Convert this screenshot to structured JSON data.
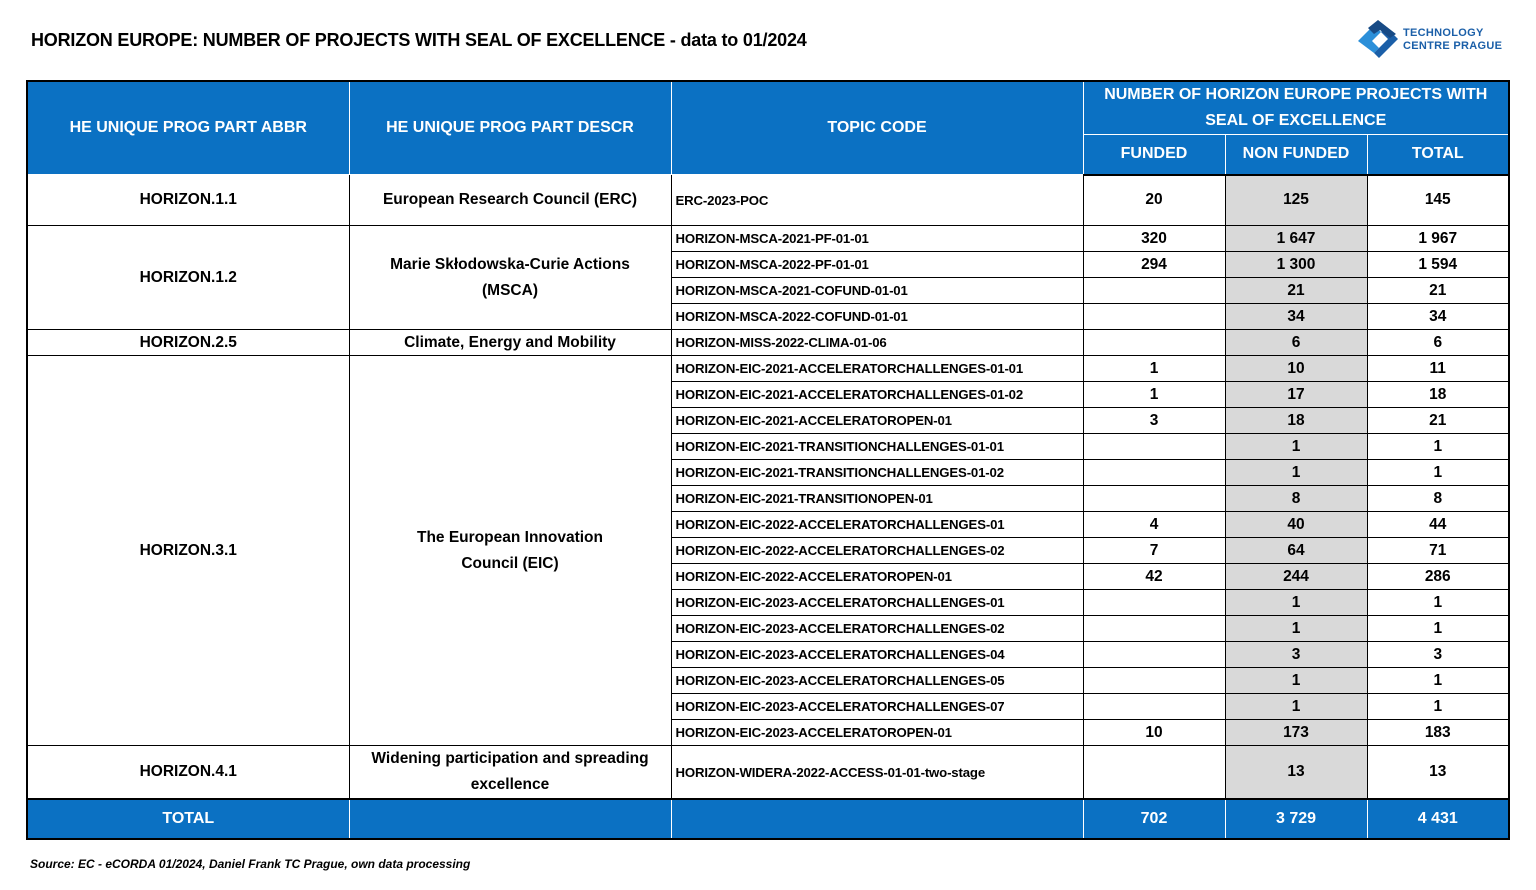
{
  "title": "HORIZON EUROPE: NUMBER OF PROJECTS WITH SEAL OF EXCELLENCE - data to 01/2024",
  "logo": {
    "line1": "TECHNOLOGY",
    "line2": "CENTRE PRAGUE",
    "colors": [
      "#1b5fa8",
      "#2b8fd9"
    ]
  },
  "header": {
    "abbr": "HE UNIQUE PROG PART ABBR",
    "descr": "HE UNIQUE PROG PART DESCR",
    "topic": "TOPIC CODE",
    "group": "NUMBER OF HORIZON EUROPE PROJECTS WITH SEAL OF EXCELLENCE",
    "funded": "FUNDED",
    "non_funded": "NON FUNDED",
    "total": "TOTAL"
  },
  "groups": [
    {
      "abbr": "HORIZON.1.1",
      "descr": "European Research Council (ERC)",
      "tall": true,
      "rows": [
        {
          "topic": "ERC-2023-POC",
          "funded": "20",
          "non_funded": "125",
          "total": "145"
        }
      ]
    },
    {
      "abbr": "HORIZON.1.2",
      "descr": "Marie Skłodowska-Curie Actions (MSCA)",
      "rows": [
        {
          "topic": "HORIZON-MSCA-2021-PF-01-01",
          "funded": "320",
          "non_funded": "1 647",
          "total": "1 967"
        },
        {
          "topic": "HORIZON-MSCA-2022-PF-01-01",
          "funded": "294",
          "non_funded": "1 300",
          "total": "1 594"
        },
        {
          "topic": "HORIZON-MSCA-2021-COFUND-01-01",
          "funded": "",
          "non_funded": "21",
          "total": "21"
        },
        {
          "topic": "HORIZON-MSCA-2022-COFUND-01-01",
          "funded": "",
          "non_funded": "34",
          "total": "34"
        }
      ]
    },
    {
      "abbr": "HORIZON.2.5",
      "descr": "Climate, Energy and Mobility",
      "rows": [
        {
          "topic": "HORIZON-MISS-2022-CLIMA-01-06",
          "funded": "",
          "non_funded": "6",
          "total": "6"
        }
      ]
    },
    {
      "abbr": "HORIZON.3.1",
      "descr": "The European Innovation Council (EIC)",
      "rows": [
        {
          "topic": "HORIZON-EIC-2021-ACCELERATORCHALLENGES-01-01",
          "funded": "1",
          "non_funded": "10",
          "total": "11"
        },
        {
          "topic": "HORIZON-EIC-2021-ACCELERATORCHALLENGES-01-02",
          "funded": "1",
          "non_funded": "17",
          "total": "18"
        },
        {
          "topic": "HORIZON-EIC-2021-ACCELERATOROPEN-01",
          "funded": "3",
          "non_funded": "18",
          "total": "21"
        },
        {
          "topic": "HORIZON-EIC-2021-TRANSITIONCHALLENGES-01-01",
          "funded": "",
          "non_funded": "1",
          "total": "1"
        },
        {
          "topic": "HORIZON-EIC-2021-TRANSITIONCHALLENGES-01-02",
          "funded": "",
          "non_funded": "1",
          "total": "1"
        },
        {
          "topic": "HORIZON-EIC-2021-TRANSITIONOPEN-01",
          "funded": "",
          "non_funded": "8",
          "total": "8"
        },
        {
          "topic": "HORIZON-EIC-2022-ACCELERATORCHALLENGES-01",
          "funded": "4",
          "non_funded": "40",
          "total": "44"
        },
        {
          "topic": "HORIZON-EIC-2022-ACCELERATORCHALLENGES-02",
          "funded": "7",
          "non_funded": "64",
          "total": "71"
        },
        {
          "topic": "HORIZON-EIC-2022-ACCELERATOROPEN-01",
          "funded": "42",
          "non_funded": "244",
          "total": "286"
        },
        {
          "topic": "HORIZON-EIC-2023-ACCELERATORCHALLENGES-01",
          "funded": "",
          "non_funded": "1",
          "total": "1"
        },
        {
          "topic": "HORIZON-EIC-2023-ACCELERATORCHALLENGES-02",
          "funded": "",
          "non_funded": "1",
          "total": "1"
        },
        {
          "topic": "HORIZON-EIC-2023-ACCELERATORCHALLENGES-04",
          "funded": "",
          "non_funded": "3",
          "total": "3"
        },
        {
          "topic": "HORIZON-EIC-2023-ACCELERATORCHALLENGES-05",
          "funded": "",
          "non_funded": "1",
          "total": "1"
        },
        {
          "topic": "HORIZON-EIC-2023-ACCELERATORCHALLENGES-07",
          "funded": "",
          "non_funded": "1",
          "total": "1"
        },
        {
          "topic": "HORIZON-EIC-2023-ACCELERATOROPEN-01",
          "funded": "10",
          "non_funded": "173",
          "total": "183"
        }
      ]
    },
    {
      "abbr": "HORIZON.4.1",
      "descr": "Widening participation and spreading excellence",
      "tall": true,
      "rows": [
        {
          "topic": "HORIZON-WIDERA-2022-ACCESS-01-01-two-stage",
          "funded": "",
          "non_funded": "13",
          "total": "13"
        }
      ]
    }
  ],
  "totals": {
    "label": "TOTAL",
    "funded": "702",
    "non_funded": "3 729",
    "total": "4 431"
  },
  "source": "Source: EC - eCORDA 01/2024, Daniel Frank TC Prague, own data processing"
}
